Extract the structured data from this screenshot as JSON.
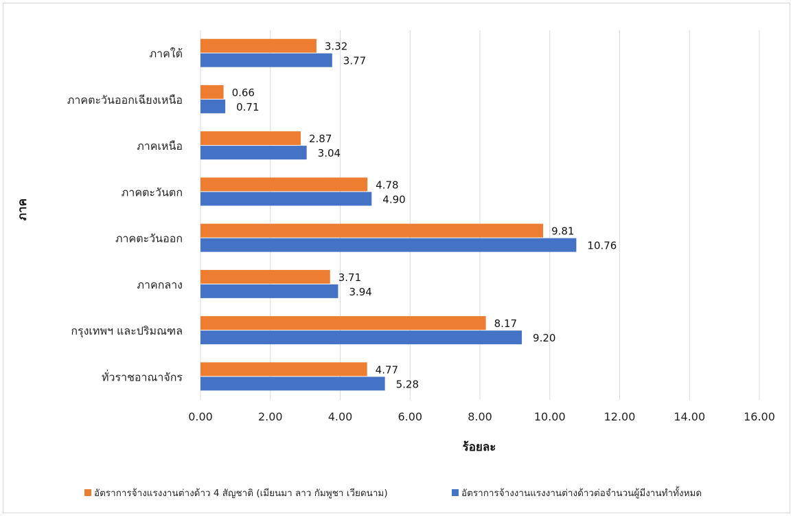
{
  "chart_data": {
    "type": "bar",
    "orientation": "horizontal",
    "categories": [
      "ภาคใต้",
      "ภาคตะวันออกเฉียงเหนือ",
      "ภาคเหนือ",
      "ภาคตะวันตก",
      "ภาคตะวันออก",
      "ภาคกลาง",
      "กรุงเทพฯ และปริมณฑล",
      "ทั่วราชอาณาจักร"
    ],
    "series": [
      {
        "name": "อัตราการจ้างแรงงานต่างด้าว 4 สัญชาติ (เมียนมา ลาว กัมพูชา เวียดนาม)",
        "color": "#ed7d31",
        "values": [
          3.32,
          0.66,
          2.87,
          4.78,
          9.81,
          3.71,
          8.17,
          4.77
        ],
        "labels": [
          "3.32",
          "0.66",
          "2.87",
          "4.78",
          "9.81",
          "3.71",
          "8.17",
          "4.77"
        ]
      },
      {
        "name": "อัตราการจ้างงานแรงงานต่างด้าวต่อจำนวนผู้มีงานทำทั้งหมด",
        "color": "#4472c4",
        "values": [
          3.77,
          0.71,
          3.04,
          4.9,
          10.76,
          3.94,
          9.2,
          5.28
        ],
        "labels": [
          "3.77",
          "0.71",
          "3.04",
          "4.90",
          "10.76",
          "3.94",
          "9.20",
          "5.28"
        ]
      }
    ],
    "xlim": [
      0,
      16
    ],
    "xticks": [
      "0.00",
      "2.00",
      "4.00",
      "6.00",
      "8.00",
      "10.00",
      "12.00",
      "14.00",
      "16.00"
    ],
    "xlabel": "ร้อยละ",
    "ylabel": "ภาค",
    "grid": true,
    "legend_position": "bottom"
  }
}
